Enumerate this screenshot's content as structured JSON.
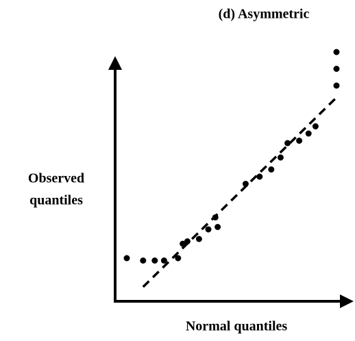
{
  "chart_data": {
    "type": "scatter",
    "title": "(d) Asymmetric",
    "ylabel": [
      "Observed",
      "quantiles"
    ],
    "xlabel": "Normal quantiles",
    "color": "#000000",
    "xlim": [
      0,
      10
    ],
    "ylim": [
      0,
      10
    ],
    "x": [
      0.5,
      1.2,
      1.7,
      2.1,
      2.7,
      2.9,
      3.1,
      3.6,
      4.0,
      4.4,
      4.3,
      5.6,
      6.2,
      6.7,
      7.1,
      7.4,
      7.9,
      8.3,
      8.6,
      9.5,
      9.5,
      9.5
    ],
    "values": [
      1.8,
      1.7,
      1.7,
      1.7,
      1.8,
      2.4,
      2.5,
      2.6,
      3.0,
      3.1,
      3.5,
      4.9,
      5.2,
      5.5,
      6.0,
      6.6,
      6.7,
      7.0,
      7.3,
      9.0,
      9.7,
      10.4
    ],
    "reference_line": {
      "x": [
        1.2,
        9.6
      ],
      "values": [
        0.6,
        8.6
      ]
    }
  }
}
